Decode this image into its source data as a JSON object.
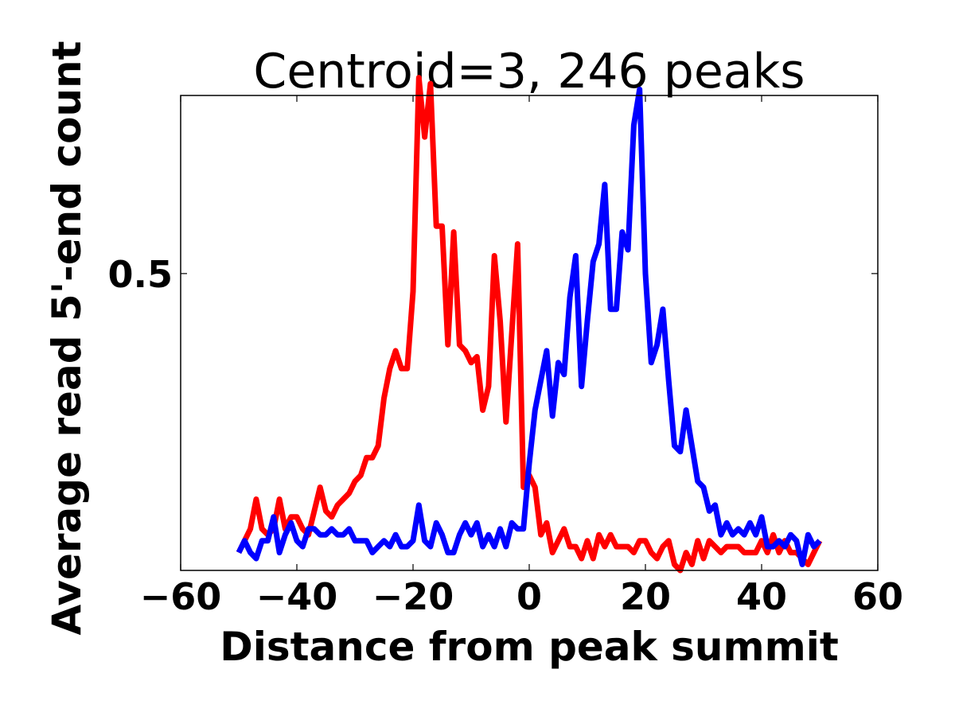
{
  "chart_data": {
    "type": "line",
    "title": "Centroid=3, 246 peaks",
    "xlabel": "Distance from peak summit",
    "ylabel": "Average read 5'-end count",
    "xlim": [
      -60,
      60
    ],
    "ylim": [
      0.0,
      0.8
    ],
    "xticks": [
      -60,
      -40,
      -20,
      0,
      20,
      40,
      60
    ],
    "xtick_labels": [
      "−60",
      "−40",
      "−20",
      "0",
      "20",
      "40",
      "60"
    ],
    "yticks": [
      0.5
    ],
    "ytick_labels": [
      "0.5"
    ],
    "grid": false,
    "x": [
      -50,
      -49,
      -48,
      -47,
      -46,
      -45,
      -44,
      -43,
      -42,
      -41,
      -40,
      -39,
      -38,
      -37,
      -36,
      -35,
      -34,
      -33,
      -32,
      -31,
      -30,
      -29,
      -28,
      -27,
      -26,
      -25,
      -24,
      -23,
      -22,
      -21,
      -20,
      -19,
      -18,
      -17,
      -16,
      -15,
      -14,
      -13,
      -12,
      -11,
      -10,
      -9,
      -8,
      -7,
      -6,
      -5,
      -4,
      -3,
      -2,
      -1,
      0,
      1,
      2,
      3,
      4,
      5,
      6,
      7,
      8,
      9,
      10,
      11,
      12,
      13,
      14,
      15,
      16,
      17,
      18,
      19,
      20,
      21,
      22,
      23,
      24,
      25,
      26,
      27,
      28,
      29,
      30,
      31,
      32,
      33,
      34,
      35,
      36,
      37,
      38,
      39,
      40,
      41,
      42,
      43,
      44,
      45,
      46,
      47,
      48,
      49,
      50
    ],
    "series": [
      {
        "color": "#ff0000",
        "values": [
          0.03,
          0.05,
          0.07,
          0.12,
          0.07,
          0.06,
          0.07,
          0.12,
          0.07,
          0.09,
          0.09,
          0.07,
          0.06,
          0.1,
          0.14,
          0.1,
          0.09,
          0.11,
          0.12,
          0.13,
          0.15,
          0.16,
          0.19,
          0.19,
          0.21,
          0.29,
          0.34,
          0.37,
          0.34,
          0.34,
          0.47,
          0.83,
          0.73,
          0.82,
          0.58,
          0.58,
          0.38,
          0.57,
          0.38,
          0.37,
          0.35,
          0.36,
          0.27,
          0.31,
          0.53,
          0.42,
          0.25,
          0.4,
          0.55,
          0.14,
          0.16,
          0.14,
          0.06,
          0.08,
          0.03,
          0.05,
          0.07,
          0.04,
          0.04,
          0.02,
          0.05,
          0.02,
          0.06,
          0.04,
          0.06,
          0.04,
          0.04,
          0.04,
          0.03,
          0.05,
          0.05,
          0.03,
          0.02,
          0.04,
          0.05,
          0.01,
          0.0,
          0.03,
          0.01,
          0.05,
          0.02,
          0.05,
          0.04,
          0.03,
          0.04,
          0.04,
          0.04,
          0.03,
          0.03,
          0.03,
          0.05,
          0.03,
          0.06,
          0.03,
          0.05,
          0.03,
          0.03,
          0.02,
          0.01,
          0.03,
          0.05
        ]
      },
      {
        "color": "#0000ff",
        "values": [
          0.03,
          0.05,
          0.03,
          0.02,
          0.05,
          0.05,
          0.09,
          0.03,
          0.06,
          0.08,
          0.05,
          0.04,
          0.07,
          0.07,
          0.06,
          0.06,
          0.07,
          0.06,
          0.06,
          0.07,
          0.05,
          0.05,
          0.05,
          0.03,
          0.04,
          0.05,
          0.04,
          0.06,
          0.04,
          0.04,
          0.05,
          0.11,
          0.05,
          0.04,
          0.08,
          0.06,
          0.03,
          0.03,
          0.06,
          0.08,
          0.06,
          0.08,
          0.04,
          0.06,
          0.04,
          0.07,
          0.04,
          0.08,
          0.07,
          0.07,
          0.18,
          0.27,
          0.32,
          0.37,
          0.26,
          0.35,
          0.33,
          0.46,
          0.53,
          0.31,
          0.42,
          0.52,
          0.55,
          0.65,
          0.44,
          0.44,
          0.57,
          0.54,
          0.75,
          0.81,
          0.5,
          0.35,
          0.38,
          0.44,
          0.32,
          0.21,
          0.2,
          0.27,
          0.21,
          0.15,
          0.14,
          0.1,
          0.11,
          0.06,
          0.08,
          0.06,
          0.07,
          0.06,
          0.08,
          0.06,
          0.09,
          0.04,
          0.04,
          0.05,
          0.04,
          0.06,
          0.05,
          0.01,
          0.06,
          0.04,
          0.05
        ]
      }
    ]
  }
}
